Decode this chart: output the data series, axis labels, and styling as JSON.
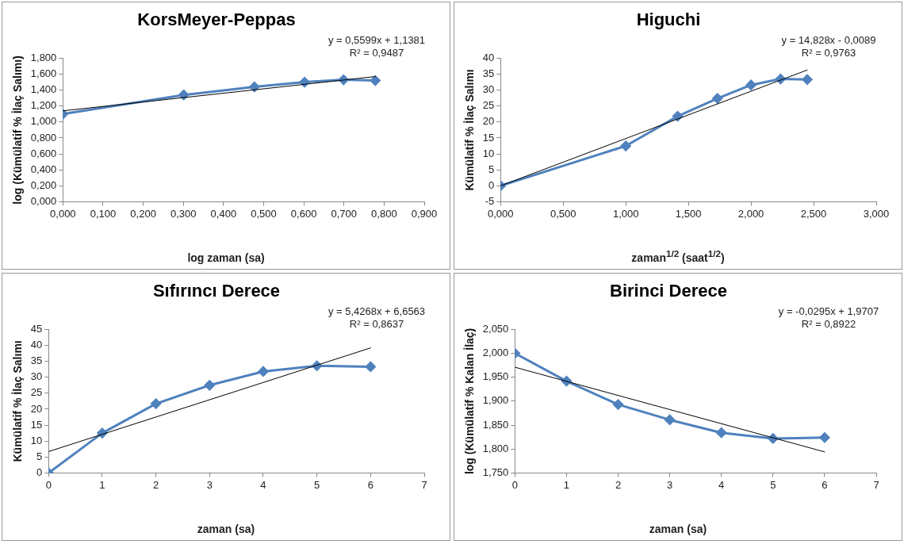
{
  "chart_data": [
    {
      "type": "line",
      "title": "KorsMeyer-Peppas",
      "xlabel": "log zaman (sa)",
      "ylabel": "log (Kümülatif % İlaç Salımı)",
      "x": [
        0,
        0.301,
        0.477,
        0.602,
        0.699,
        0.778
      ],
      "series": [
        {
          "color": "#4f81bd",
          "values": [
            1.1,
            1.34,
            1.44,
            1.5,
            1.53,
            1.52
          ]
        },
        {
          "type": "line",
          "color": "#000000",
          "marker": "none",
          "x": [
            0,
            0.778
          ],
          "values": [
            1.14,
            1.57
          ]
        }
      ],
      "xlim": [
        0,
        0.9
      ],
      "xticks": [
        {
          "value": 0,
          "label": "0,000"
        },
        {
          "value": 0.1,
          "label": "0,100"
        },
        {
          "value": 0.2,
          "label": "0,200"
        },
        {
          "value": 0.3,
          "label": "0,300"
        },
        {
          "value": 0.4,
          "label": "0,400"
        },
        {
          "value": 0.5,
          "label": "0,500"
        },
        {
          "value": 0.6,
          "label": "0,600"
        },
        {
          "value": 0.7,
          "label": "0,700"
        },
        {
          "value": 0.8,
          "label": "0,800"
        },
        {
          "value": 0.9,
          "label": "0,900"
        }
      ],
      "ylim": [
        0,
        1.8
      ],
      "yticks": [
        {
          "value": 0,
          "label": "0,000"
        },
        {
          "value": 0.2,
          "label": "0,200"
        },
        {
          "value": 0.4,
          "label": "0,400"
        },
        {
          "value": 0.6,
          "label": "0,600"
        },
        {
          "value": 0.8,
          "label": "0,800"
        },
        {
          "value": 1,
          "label": "1,000"
        },
        {
          "value": 1.2,
          "label": "1,200"
        },
        {
          "value": 1.4,
          "label": "1,400"
        },
        {
          "value": 1.6,
          "label": "1,600"
        },
        {
          "value": 1.8,
          "label": "1,800"
        }
      ],
      "annotations": [
        "y = 0,5599x + 1,1381",
        "R² = 0,9487"
      ],
      "grid": false,
      "legend": false,
      "marker": "diamond"
    },
    {
      "type": "line",
      "title": "Higuchi",
      "xlabel": "zaman$^{1/2}$ (saat$^{1/2}$)",
      "ylabel": "Kümülatif % İlaç Salımı",
      "x": [
        0,
        1,
        1.414,
        1.732,
        2,
        2.236,
        2.449
      ],
      "series": [
        {
          "color": "#4f81bd",
          "values": [
            0,
            12.5,
            21.8,
            27.4,
            31.6,
            33.5,
            33.3
          ]
        },
        {
          "type": "line",
          "color": "#000000",
          "marker": "none",
          "x": [
            0,
            2.449
          ],
          "values": [
            0,
            36.3
          ]
        }
      ],
      "xlim": [
        0,
        3
      ],
      "xticks": [
        {
          "value": 0,
          "label": "0,000"
        },
        {
          "value": 0.5,
          "label": "0,500"
        },
        {
          "value": 1,
          "label": "1,000"
        },
        {
          "value": 1.5,
          "label": "1,500"
        },
        {
          "value": 2,
          "label": "2,000"
        },
        {
          "value": 2.5,
          "label": "2,500"
        },
        {
          "value": 3,
          "label": "3,000"
        }
      ],
      "ylim": [
        -5,
        40
      ],
      "yticks": [
        -5,
        0,
        5,
        10,
        15,
        20,
        25,
        30,
        35,
        40
      ],
      "annotations": [
        "y = 14,828x - 0,0089",
        "R² = 0,9763"
      ],
      "grid": false,
      "legend": false,
      "marker": "diamond"
    },
    {
      "type": "line",
      "title": "Sıfırıncı Derece",
      "xlabel": "zaman (sa)",
      "ylabel": "Kümülatif % İlaç Salımı",
      "x": [
        0,
        1,
        2,
        3,
        4,
        5,
        6
      ],
      "series": [
        {
          "color": "#4f81bd",
          "values": [
            0,
            12.5,
            21.7,
            27.5,
            31.8,
            33.6,
            33.3
          ]
        },
        {
          "type": "line",
          "color": "#000000",
          "marker": "none",
          "x": [
            0,
            6
          ],
          "values": [
            6.7,
            39.2
          ]
        }
      ],
      "xlim": [
        0,
        7
      ],
      "xticks": [
        0,
        1,
        2,
        3,
        4,
        5,
        6,
        7
      ],
      "ylim": [
        0,
        45
      ],
      "yticks": [
        0,
        5,
        10,
        15,
        20,
        25,
        30,
        35,
        40,
        45
      ],
      "annotations": [
        "y = 5,4268x + 6,6563",
        "R² = 0,8637"
      ],
      "grid": false,
      "legend": false,
      "marker": "diamond"
    },
    {
      "type": "line",
      "title": "Birinci Derece",
      "xlabel": "zaman (sa)",
      "ylabel": "log (Kümülatif % Kalan İlaç)",
      "x": [
        0,
        1,
        2,
        3,
        4,
        5,
        6
      ],
      "series": [
        {
          "color": "#4f81bd",
          "values": [
            2.0,
            1.942,
            1.893,
            1.861,
            1.834,
            1.822,
            1.824
          ]
        },
        {
          "type": "line",
          "color": "#000000",
          "marker": "none",
          "x": [
            0,
            6
          ],
          "values": [
            1.971,
            1.794
          ]
        }
      ],
      "xlim": [
        0,
        7
      ],
      "xticks": [
        0,
        1,
        2,
        3,
        4,
        5,
        6,
        7
      ],
      "ylim": [
        1.75,
        2.05
      ],
      "yticks": [
        {
          "value": 1.75,
          "label": "1,750"
        },
        {
          "value": 1.8,
          "label": "1,800"
        },
        {
          "value": 1.85,
          "label": "1,850"
        },
        {
          "value": 1.9,
          "label": "1,900"
        },
        {
          "value": 1.95,
          "label": "1,950"
        },
        {
          "value": 2,
          "label": "2,000"
        },
        {
          "value": 2.05,
          "label": "2,050"
        }
      ],
      "annotations": [
        "y = -0,0295x + 1,9707",
        "R² = 0,8922"
      ],
      "grid": false,
      "legend": false,
      "marker": "diamond"
    }
  ]
}
